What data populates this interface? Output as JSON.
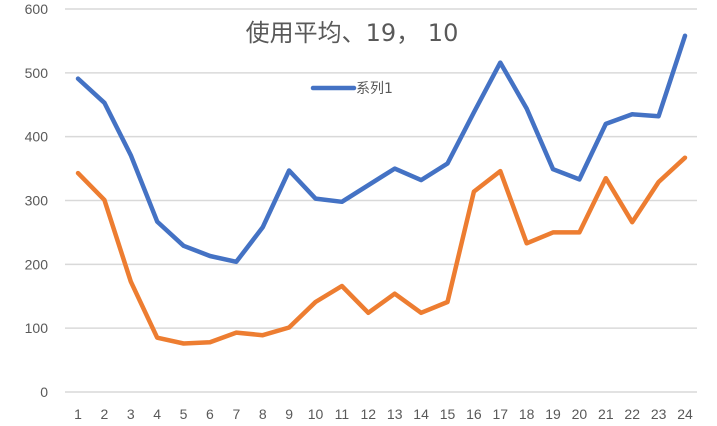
{
  "chart_data": {
    "type": "line",
    "title": "使用平均、19， 10",
    "xlabel": "",
    "ylabel": "",
    "categories": [
      "1",
      "2",
      "3",
      "4",
      "5",
      "6",
      "7",
      "8",
      "9",
      "10",
      "11",
      "12",
      "13",
      "14",
      "15",
      "16",
      "17",
      "18",
      "19",
      "20",
      "21",
      "22",
      "23",
      "24"
    ],
    "series": [
      {
        "name": "系列1",
        "color": "#4472C4",
        "values": [
          491,
          453,
          371,
          267,
          229,
          213,
          204,
          258,
          347,
          303,
          298,
          324,
          350,
          332,
          358,
          438,
          516,
          444,
          349,
          333,
          420,
          435,
          432,
          558
        ]
      },
      {
        "name": "",
        "color": "#ED7D31",
        "values": [
          343,
          301,
          173,
          85,
          76,
          78,
          93,
          89,
          101,
          141,
          166,
          124,
          154,
          124,
          141,
          314,
          346,
          233,
          250,
          250,
          335,
          266,
          329,
          367
        ]
      }
    ],
    "ylim": [
      0,
      600
    ],
    "yticks": [
      0,
      100,
      200,
      300,
      400,
      500,
      600
    ],
    "grid": true,
    "legend": {
      "position": "top",
      "entries": [
        "系列1"
      ]
    }
  }
}
